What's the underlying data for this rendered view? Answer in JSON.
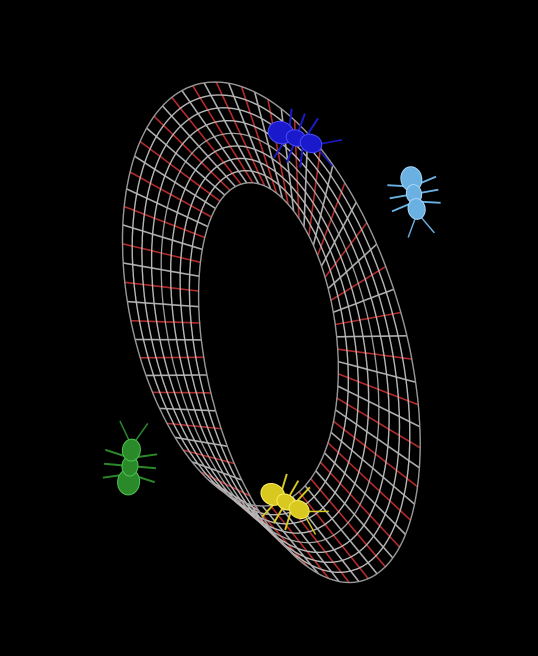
{
  "scene": {
    "subject": "mobius-strip-wireframe",
    "background_color": "#000000",
    "mesh": {
      "edge_color": "#9a9a9a",
      "rung_colors": [
        "#c0c0c0",
        "#c83030",
        "#ff6a6a",
        "#8a1010"
      ],
      "highlight_color": "#ffd0d0"
    },
    "ants": [
      {
        "name": "blue-ant",
        "color": "#1a1acc",
        "highlight": "#4a4aff"
      },
      {
        "name": "light-blue-ant",
        "color": "#6ab0e0",
        "highlight": "#a8d8ff"
      },
      {
        "name": "green-ant",
        "color": "#2a8a2a",
        "highlight": "#4ec04e"
      },
      {
        "name": "yellow-ant",
        "color": "#d8c820",
        "highlight": "#fff060"
      }
    ]
  }
}
